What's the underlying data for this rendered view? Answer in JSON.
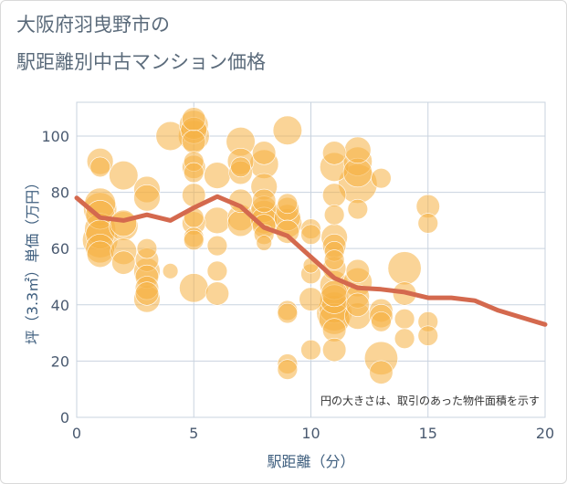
{
  "title": {
    "line1": "大阪府羽曳野市の",
    "line2": "駅距離別中古マンション価格"
  },
  "colors": {
    "bubble": "#f5b041",
    "line": "#d4694e",
    "grid": "#c9d3df",
    "axis_text": "#4a5a70"
  },
  "chart_data": {
    "type": "scatter",
    "xlabel": "駅距離（分）",
    "ylabel": "坪（3.3㎡）単価（万円）",
    "xlim": [
      0,
      20
    ],
    "ylim": [
      0,
      112
    ],
    "x_ticks": [
      "0",
      "5",
      "10",
      "15",
      "20"
    ],
    "y_ticks": [
      "0",
      "20",
      "40",
      "60",
      "80",
      "100"
    ],
    "annotation": "円の大きさは、取引のあった物件面積を示す",
    "series": [
      {
        "type": "bubble",
        "points": [
          {
            "x": 1,
            "y": 91,
            "s": 8
          },
          {
            "x": 1,
            "y": 89,
            "s": 4
          },
          {
            "x": 1,
            "y": 76,
            "s": 12
          },
          {
            "x": 1,
            "y": 74,
            "s": 14
          },
          {
            "x": 1,
            "y": 72,
            "s": 10
          },
          {
            "x": 1,
            "y": 67,
            "s": 12
          },
          {
            "x": 1,
            "y": 65,
            "s": 10
          },
          {
            "x": 1,
            "y": 63,
            "s": 16
          },
          {
            "x": 1,
            "y": 60,
            "s": 10
          },
          {
            "x": 1,
            "y": 58,
            "s": 8
          },
          {
            "x": 2,
            "y": 86,
            "s": 10
          },
          {
            "x": 2,
            "y": 69,
            "s": 8
          },
          {
            "x": 2,
            "y": 68,
            "s": 10
          },
          {
            "x": 2,
            "y": 59,
            "s": 8
          },
          {
            "x": 2,
            "y": 55,
            "s": 6
          },
          {
            "x": 3,
            "y": 81,
            "s": 8
          },
          {
            "x": 3,
            "y": 78,
            "s": 8
          },
          {
            "x": 3,
            "y": 60,
            "s": 4
          },
          {
            "x": 3,
            "y": 56,
            "s": 6
          },
          {
            "x": 3,
            "y": 52,
            "s": 8
          },
          {
            "x": 3,
            "y": 50,
            "s": 6
          },
          {
            "x": 3,
            "y": 46,
            "s": 6
          },
          {
            "x": 3,
            "y": 44,
            "s": 6
          },
          {
            "x": 3,
            "y": 42,
            "s": 8
          },
          {
            "x": 4,
            "y": 100,
            "s": 10
          },
          {
            "x": 4,
            "y": 52,
            "s": 2
          },
          {
            "x": 5,
            "y": 106,
            "s": 6
          },
          {
            "x": 5,
            "y": 104,
            "s": 10
          },
          {
            "x": 5,
            "y": 102,
            "s": 8
          },
          {
            "x": 5,
            "y": 100,
            "s": 12
          },
          {
            "x": 5,
            "y": 98,
            "s": 6
          },
          {
            "x": 5,
            "y": 91,
            "s": 4
          },
          {
            "x": 5,
            "y": 89,
            "s": 6
          },
          {
            "x": 5,
            "y": 87,
            "s": 4
          },
          {
            "x": 5,
            "y": 79,
            "s": 6
          },
          {
            "x": 5,
            "y": 71,
            "s": 4
          },
          {
            "x": 5,
            "y": 69,
            "s": 6
          },
          {
            "x": 5,
            "y": 64,
            "s": 4
          },
          {
            "x": 5,
            "y": 63,
            "s": 4
          },
          {
            "x": 5,
            "y": 46,
            "s": 10
          },
          {
            "x": 6,
            "y": 86,
            "s": 8
          },
          {
            "x": 6,
            "y": 70,
            "s": 8
          },
          {
            "x": 6,
            "y": 61,
            "s": 4
          },
          {
            "x": 6,
            "y": 52,
            "s": 4
          },
          {
            "x": 6,
            "y": 44,
            "s": 6
          },
          {
            "x": 7,
            "y": 98,
            "s": 10
          },
          {
            "x": 7,
            "y": 91,
            "s": 8
          },
          {
            "x": 7,
            "y": 89,
            "s": 4
          },
          {
            "x": 7,
            "y": 87,
            "s": 6
          },
          {
            "x": 7,
            "y": 77,
            "s": 6
          },
          {
            "x": 7,
            "y": 71,
            "s": 8
          },
          {
            "x": 7,
            "y": 69,
            "s": 8
          },
          {
            "x": 8,
            "y": 94,
            "s": 6
          },
          {
            "x": 8,
            "y": 90,
            "s": 10
          },
          {
            "x": 8,
            "y": 82,
            "s": 8
          },
          {
            "x": 8,
            "y": 77,
            "s": 6
          },
          {
            "x": 8,
            "y": 74,
            "s": 8
          },
          {
            "x": 8,
            "y": 72,
            "s": 10
          },
          {
            "x": 8,
            "y": 70,
            "s": 8
          },
          {
            "x": 8,
            "y": 68,
            "s": 6
          },
          {
            "x": 8,
            "y": 65,
            "s": 4
          },
          {
            "x": 8,
            "y": 62,
            "s": 2
          },
          {
            "x": 9,
            "y": 102,
            "s": 10
          },
          {
            "x": 9,
            "y": 76,
            "s": 4
          },
          {
            "x": 9,
            "y": 74,
            "s": 6
          },
          {
            "x": 9,
            "y": 71,
            "s": 8
          },
          {
            "x": 9,
            "y": 69,
            "s": 10
          },
          {
            "x": 9,
            "y": 66,
            "s": 6
          },
          {
            "x": 9,
            "y": 38,
            "s": 4
          },
          {
            "x": 9,
            "y": 37,
            "s": 4
          },
          {
            "x": 9,
            "y": 19,
            "s": 4
          },
          {
            "x": 9,
            "y": 17,
            "s": 4
          },
          {
            "x": 10,
            "y": 67,
            "s": 4
          },
          {
            "x": 10,
            "y": 65,
            "s": 4
          },
          {
            "x": 10,
            "y": 54,
            "s": 2
          },
          {
            "x": 10,
            "y": 51,
            "s": 4
          },
          {
            "x": 10,
            "y": 42,
            "s": 6
          },
          {
            "x": 10,
            "y": 24,
            "s": 4
          },
          {
            "x": 11,
            "y": 94,
            "s": 6
          },
          {
            "x": 11,
            "y": 89,
            "s": 10
          },
          {
            "x": 11,
            "y": 79,
            "s": 6
          },
          {
            "x": 11,
            "y": 72,
            "s": 4
          },
          {
            "x": 11,
            "y": 64,
            "s": 8
          },
          {
            "x": 11,
            "y": 61,
            "s": 6
          },
          {
            "x": 11,
            "y": 59,
            "s": 4
          },
          {
            "x": 11,
            "y": 56,
            "s": 4
          },
          {
            "x": 11,
            "y": 53,
            "s": 6
          },
          {
            "x": 11,
            "y": 47,
            "s": 10
          },
          {
            "x": 11,
            "y": 44,
            "s": 8
          },
          {
            "x": 11,
            "y": 42,
            "s": 10
          },
          {
            "x": 11,
            "y": 39,
            "s": 12
          },
          {
            "x": 11,
            "y": 37,
            "s": 16
          },
          {
            "x": 11,
            "y": 35,
            "s": 12
          },
          {
            "x": 11,
            "y": 31,
            "s": 6
          },
          {
            "x": 11,
            "y": 24,
            "s": 6
          },
          {
            "x": 12,
            "y": 95,
            "s": 8
          },
          {
            "x": 12,
            "y": 91,
            "s": 10
          },
          {
            "x": 12,
            "y": 87,
            "s": 10
          },
          {
            "x": 12,
            "y": 83,
            "s": 20
          },
          {
            "x": 12,
            "y": 74,
            "s": 4
          },
          {
            "x": 12,
            "y": 52,
            "s": 6
          },
          {
            "x": 12,
            "y": 48,
            "s": 10
          },
          {
            "x": 12,
            "y": 43,
            "s": 6
          },
          {
            "x": 12,
            "y": 40,
            "s": 6
          },
          {
            "x": 12,
            "y": 36,
            "s": 8
          },
          {
            "x": 13,
            "y": 85,
            "s": 4
          },
          {
            "x": 13,
            "y": 38,
            "s": 6
          },
          {
            "x": 13,
            "y": 36,
            "s": 6
          },
          {
            "x": 13,
            "y": 34,
            "s": 4
          },
          {
            "x": 13,
            "y": 21,
            "s": 14
          },
          {
            "x": 13,
            "y": 16,
            "s": 6
          },
          {
            "x": 14,
            "y": 53,
            "s": 14
          },
          {
            "x": 14,
            "y": 44,
            "s": 6
          },
          {
            "x": 14,
            "y": 35,
            "s": 4
          },
          {
            "x": 14,
            "y": 28,
            "s": 4
          },
          {
            "x": 15,
            "y": 75,
            "s": 6
          },
          {
            "x": 15,
            "y": 69,
            "s": 4
          },
          {
            "x": 15,
            "y": 34,
            "s": 4
          },
          {
            "x": 15,
            "y": 29,
            "s": 4
          }
        ]
      },
      {
        "type": "line",
        "points": [
          {
            "x": 0,
            "y": 78
          },
          {
            "x": 1,
            "y": 71
          },
          {
            "x": 2,
            "y": 70
          },
          {
            "x": 3,
            "y": 72
          },
          {
            "x": 4,
            "y": 70
          },
          {
            "x": 5,
            "y": 74.5
          },
          {
            "x": 6,
            "y": 78.5
          },
          {
            "x": 7,
            "y": 75
          },
          {
            "x": 8,
            "y": 67.5
          },
          {
            "x": 9,
            "y": 64.5
          },
          {
            "x": 10,
            "y": 57
          },
          {
            "x": 11,
            "y": 49.5
          },
          {
            "x": 12,
            "y": 46
          },
          {
            "x": 13,
            "y": 45.5
          },
          {
            "x": 14,
            "y": 44.5
          },
          {
            "x": 15,
            "y": 42.5
          },
          {
            "x": 16,
            "y": 42.5
          },
          {
            "x": 17,
            "y": 41.5
          },
          {
            "x": 18,
            "y": 38
          },
          {
            "x": 19,
            "y": 35.5
          },
          {
            "x": 20,
            "y": 33
          }
        ]
      }
    ]
  }
}
